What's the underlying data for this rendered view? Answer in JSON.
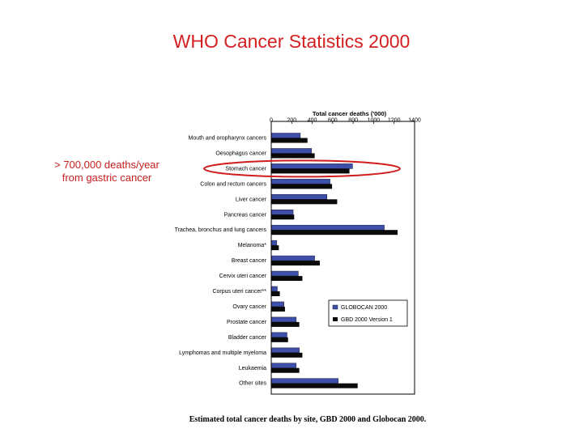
{
  "slide": {
    "title": "WHO Cancer Statistics 2000",
    "annotation_line1": "> 700,000 deaths/year",
    "annotation_line2": "from gastric cancer",
    "caption": "Estimated total cancer deaths by site, GBD 2000 and Globocan 2000."
  },
  "colors": {
    "title": "#d42020",
    "annotation": "#c81e1e",
    "highlight_ellipse": "#d01c1c",
    "globocan": "#3d4fa8",
    "gbd": "#0a0a0a"
  },
  "chart_data": {
    "type": "bar",
    "orientation": "horizontal",
    "title": "",
    "xlabel": "Total cancer deaths ('000)",
    "ylabel": "",
    "xlim": [
      0,
      1400
    ],
    "xticks": [
      0,
      200,
      400,
      600,
      800,
      1000,
      1200,
      1400
    ],
    "categories": [
      "Mouth and oropharynx cancers",
      "Oesophagus cancer",
      "Stomach cancer",
      "Colon and rectum cancers",
      "Liver cancer",
      "Pancreas cancer",
      "Trachea, bronchus and lung cancers",
      "Melanoma*",
      "Breast cancer",
      "Cervix uteri cancer",
      "Corpus uteri cancer**",
      "Ovary cancer",
      "Prostate cancer",
      "Bladder cancer",
      "Lymphomas and multiple myeloma",
      "Leukaemia",
      "Other sites"
    ],
    "series": [
      {
        "name": "GLOBOCAN 2000",
        "values": [
          280,
          390,
          790,
          570,
          540,
          210,
          1100,
          50,
          420,
          260,
          55,
          120,
          240,
          150,
          270,
          240,
          650
        ]
      },
      {
        "name": "GBD 2000 Version 1",
        "values": [
          350,
          420,
          760,
          590,
          640,
          220,
          1230,
          70,
          470,
          300,
          80,
          130,
          270,
          160,
          300,
          270,
          840
        ]
      }
    ],
    "legend_position": "lower-right inside plot",
    "grid": false,
    "highlighted_category": "Stomach cancer"
  }
}
